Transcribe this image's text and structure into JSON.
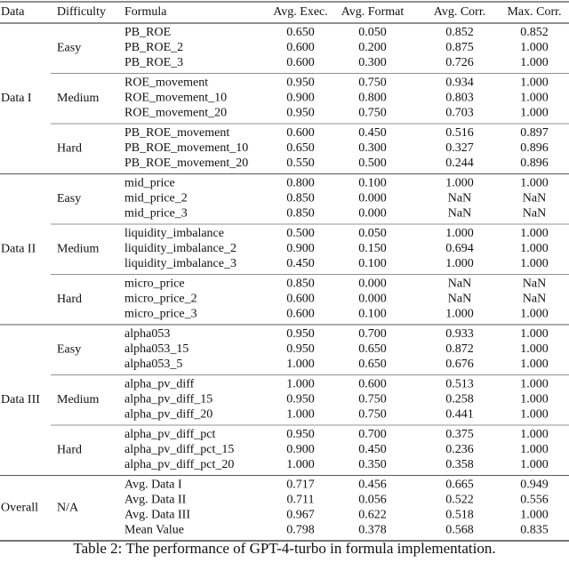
{
  "table": {
    "headers": [
      "Data",
      "Difficulty",
      "Formula",
      "Avg. Exec.",
      "Avg. Format",
      "Avg. Corr.",
      "Max. Corr."
    ],
    "groups": [
      {
        "data": "Data I",
        "subgroups": [
          {
            "difficulty": "Easy",
            "rows": [
              [
                "PB_ROE",
                "0.650",
                "0.050",
                "0.852",
                "0.852"
              ],
              [
                "PB_ROE_2",
                "0.600",
                "0.200",
                "0.875",
                "1.000"
              ],
              [
                "PB_ROE_3",
                "0.600",
                "0.300",
                "0.726",
                "1.000"
              ]
            ]
          },
          {
            "difficulty": "Medium",
            "rows": [
              [
                "ROE_movement",
                "0.950",
                "0.750",
                "0.934",
                "1.000"
              ],
              [
                "ROE_movement_10",
                "0.900",
                "0.800",
                "0.803",
                "1.000"
              ],
              [
                "ROE_movement_20",
                "0.950",
                "0.750",
                "0.703",
                "1.000"
              ]
            ]
          },
          {
            "difficulty": "Hard",
            "rows": [
              [
                "PB_ROE_movement",
                "0.600",
                "0.450",
                "0.516",
                "0.897"
              ],
              [
                "PB_ROE_movement_10",
                "0.650",
                "0.300",
                "0.327",
                "0.896"
              ],
              [
                "PB_ROE_movement_20",
                "0.550",
                "0.500",
                "0.244",
                "0.896"
              ]
            ]
          }
        ]
      },
      {
        "data": "Data II",
        "subgroups": [
          {
            "difficulty": "Easy",
            "rows": [
              [
                "mid_price",
                "0.800",
                "0.100",
                "1.000",
                "1.000"
              ],
              [
                "mid_price_2",
                "0.850",
                "0.000",
                "NaN",
                "NaN"
              ],
              [
                "mid_price_3",
                "0.850",
                "0.000",
                "NaN",
                "NaN"
              ]
            ]
          },
          {
            "difficulty": "Medium",
            "rows": [
              [
                "liquidity_imbalance",
                "0.500",
                "0.050",
                "1.000",
                "1.000"
              ],
              [
                "liquidity_imbalance_2",
                "0.900",
                "0.150",
                "0.694",
                "1.000"
              ],
              [
                "liquidity_imbalance_3",
                "0.450",
                "0.100",
                "1.000",
                "1.000"
              ]
            ]
          },
          {
            "difficulty": "Hard",
            "rows": [
              [
                "micro_price",
                "0.850",
                "0.000",
                "NaN",
                "NaN"
              ],
              [
                "micro_price_2",
                "0.600",
                "0.000",
                "NaN",
                "NaN"
              ],
              [
                "micro_price_3",
                "0.600",
                "0.100",
                "1.000",
                "1.000"
              ]
            ]
          }
        ]
      },
      {
        "data": "Data III",
        "subgroups": [
          {
            "difficulty": "Easy",
            "rows": [
              [
                "alpha053",
                "0.950",
                "0.700",
                "0.933",
                "1.000"
              ],
              [
                "alpha053_15",
                "0.950",
                "0.650",
                "0.872",
                "1.000"
              ],
              [
                "alpha053_5",
                "1.000",
                "0.650",
                "0.676",
                "1.000"
              ]
            ]
          },
          {
            "difficulty": "Medium",
            "rows": [
              [
                "alpha_pv_diff",
                "1.000",
                "0.600",
                "0.513",
                "1.000"
              ],
              [
                "alpha_pv_diff_15",
                "0.950",
                "0.750",
                "0.258",
                "1.000"
              ],
              [
                "alpha_pv_diff_20",
                "1.000",
                "0.750",
                "0.441",
                "1.000"
              ]
            ]
          },
          {
            "difficulty": "Hard",
            "rows": [
              [
                "alpha_pv_diff_pct",
                "0.950",
                "0.700",
                "0.375",
                "1.000"
              ],
              [
                "alpha_pv_diff_pct_15",
                "0.900",
                "0.450",
                "0.236",
                "1.000"
              ],
              [
                "alpha_pv_diff_pct_20",
                "1.000",
                "0.350",
                "0.358",
                "1.000"
              ]
            ]
          }
        ]
      },
      {
        "data": "Overall",
        "subgroups": [
          {
            "difficulty": "N/A",
            "rows": [
              [
                "Avg. Data I",
                "0.717",
                "0.456",
                "0.665",
                "0.949"
              ],
              [
                "Avg. Data II",
                "0.711",
                "0.056",
                "0.522",
                "0.556"
              ],
              [
                "Avg. Data III",
                "0.967",
                "0.622",
                "0.518",
                "1.000"
              ],
              [
                "Mean Value",
                "0.798",
                "0.378",
                "0.568",
                "0.835"
              ]
            ]
          }
        ]
      }
    ]
  },
  "caption": "Table 2: The performance of GPT-4-turbo in formula implementation."
}
